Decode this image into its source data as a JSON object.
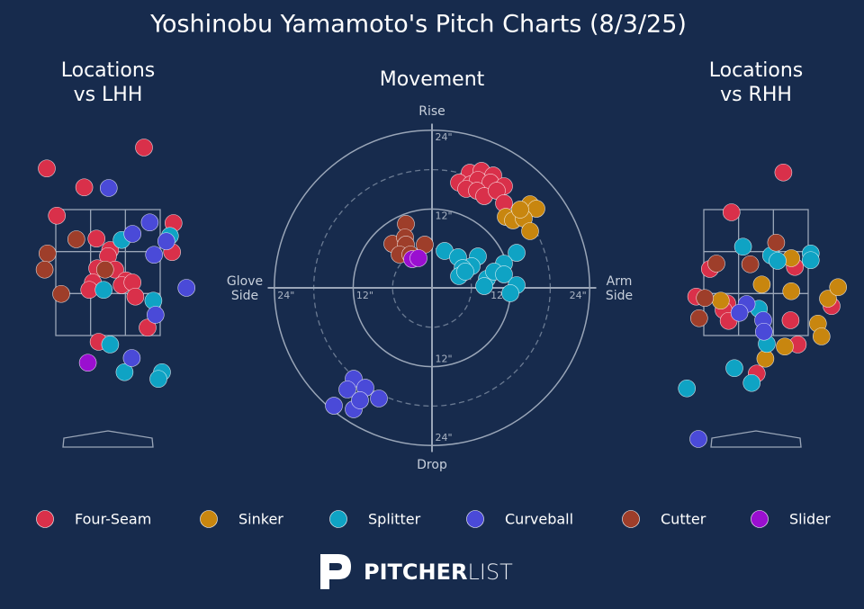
{
  "title": "Yoshinobu Yamamoto's Pitch Charts (8/3/25)",
  "brand_bold": "PITCHER",
  "brand_light": "LIST",
  "chart_data": [
    {
      "type": "scatter",
      "title": [
        "Locations",
        "vs LHH"
      ],
      "strike_zone": true,
      "xlim": [
        -1.25,
        1.25
      ],
      "ylim": [
        0,
        4.8
      ],
      "series": [
        {
          "name": "Four-Seam",
          "color": "#d9304a",
          "x": [
            -0.85,
            0.5,
            -0.33,
            -0.71,
            -0.16,
            0.91,
            0.89,
            0.03,
            0,
            -0.15,
            0.1,
            -0.21,
            -0.26,
            0.25,
            0.19,
            0.34,
            0.38,
            0.55,
            -0.13
          ],
          "y": [
            4.17,
            4.48,
            3.89,
            3.47,
            3.13,
            3.36,
            2.93,
            2.96,
            2.87,
            2.69,
            2.67,
            2.48,
            2.37,
            2.51,
            2.44,
            2.48,
            2.27,
            1.81,
            1.6
          ]
        },
        {
          "name": "Splitter",
          "color": "#0fa3c4",
          "x": [
            0.19,
            0.86,
            -0.06,
            0.63,
            0.03,
            0.23,
            0.75,
            0.7
          ],
          "y": [
            3.11,
            3.17,
            2.37,
            2.21,
            1.56,
            1.15,
            1.15,
            1.05
          ]
        },
        {
          "name": "Curveball",
          "color": "#4a4ad8",
          "x": [
            0.01,
            0.58,
            0.34,
            0.81,
            0.64,
            1.09,
            0.66,
            0.33
          ],
          "y": [
            3.88,
            3.37,
            3.2,
            3.09,
            2.89,
            2.4,
            2.0,
            1.36
          ]
        },
        {
          "name": "Cutter",
          "color": "#9e3e2a",
          "x": [
            -0.84,
            -0.44,
            -0.88,
            -0.65,
            -0.04
          ],
          "y": [
            2.91,
            3.12,
            2.67,
            2.31,
            2.67
          ]
        },
        {
          "name": "Slider",
          "color": "#9a0fd0",
          "x": [
            -0.28
          ],
          "y": [
            1.29
          ]
        }
      ]
    },
    {
      "type": "scatter",
      "title": [
        "Movement"
      ],
      "polar_grid": true,
      "xlim": [
        -25,
        25
      ],
      "ylim": [
        -25,
        25
      ],
      "rticks": [
        {
          "value": 12,
          "label": "12\""
        },
        {
          "value": 24,
          "label": "24\""
        }
      ],
      "minor_rticks": [
        6,
        18
      ],
      "axis_labels": {
        "top": "Rise",
        "bottom": "Drop",
        "left": [
          "Glove",
          "Side"
        ],
        "right": [
          "Arm",
          "Side"
        ]
      },
      "series": [
        {
          "name": "Four-Seam",
          "color": "#d9304a",
          "x": [
            5.75,
            7.53,
            9.32,
            4.11,
            5.89,
            6.99,
            8.9,
            10.96,
            5.21,
            6.85,
            7.95,
            9.86,
            10.96
          ],
          "y": [
            17.53,
            17.81,
            17.12,
            16.03,
            15.75,
            16.44,
            16.03,
            15.48,
            15.07,
            14.79,
            13.97,
            14.79,
            12.88
          ]
        },
        {
          "name": "Sinker",
          "color": "#c8860f",
          "x": [
            14.93,
            15.89,
            11.23,
            12.33,
            13.97,
            13.42,
            14.93
          ],
          "y": [
            12.74,
            12.05,
            10.82,
            10.27,
            10.55,
            11.92,
            8.63
          ]
        },
        {
          "name": "Splitter",
          "color": "#0fa3c4",
          "x": [
            1.92,
            3.97,
            6.99,
            12.88,
            6.03,
            4.66,
            10.96,
            4.11,
            5.07,
            8.36,
            9.45,
            10.96,
            7.95,
            12.88,
            11.92
          ],
          "y": [
            5.62,
            4.66,
            4.79,
            5.34,
            3.29,
            3.01,
            3.7,
            1.78,
            2.47,
            1.37,
            2.47,
            2.05,
            0.27,
            0.41,
            -0.82
          ]
        },
        {
          "name": "Curveball",
          "color": "#4a4ad8",
          "x": [
            -11.92,
            -12.88,
            -10.14,
            -8.08,
            -14.93,
            -11.92,
            -10.96
          ],
          "y": [
            -13.84,
            -15.48,
            -15.21,
            -16.85,
            -17.95,
            -18.49,
            -17.12
          ]
        },
        {
          "name": "Cutter",
          "color": "#9e3e2a",
          "x": [
            -3.97,
            -6.03,
            -4.11,
            -3.97,
            -1.1,
            -4.93,
            -3.29
          ],
          "y": [
            9.73,
            6.71,
            7.67,
            6.58,
            6.58,
            5.07,
            5.07
          ]
        },
        {
          "name": "Slider",
          "color": "#9a0fd0",
          "x": [
            -3.01,
            -2.05
          ],
          "y": [
            4.38,
            4.52
          ]
        }
      ]
    },
    {
      "type": "scatter",
      "title": [
        "Locations",
        "vs RHH"
      ],
      "strike_zone": true,
      "xlim": [
        -1.25,
        1.25
      ],
      "ylim": [
        0,
        4.8
      ],
      "series": [
        {
          "name": "Four-Seam",
          "color": "#d9304a",
          "x": [
            0.38,
            -0.34,
            0.54,
            -0.64,
            -0.83,
            -0.4,
            -0.45,
            -0.38,
            0.48,
            0.58,
            1.05,
            0.01
          ],
          "y": [
            4.11,
            3.52,
            2.71,
            2.68,
            2.27,
            2.17,
            2.07,
            1.91,
            1.92,
            1.56,
            2.13,
            1.13
          ]
        },
        {
          "name": "Sinker",
          "color": "#c8860f",
          "x": [
            0.49,
            0.08,
            0.49,
            -0.49,
            1.0,
            1.14,
            0.86,
            0.91,
            0.4,
            0.13
          ],
          "y": [
            2.84,
            2.45,
            2.35,
            2.21,
            2.24,
            2.41,
            1.87,
            1.68,
            1.53,
            1.35
          ]
        },
        {
          "name": "Splitter",
          "color": "#0fa3c4",
          "x": [
            -0.18,
            0.21,
            0.3,
            0.76,
            0.76,
            0.04,
            0.15,
            -0.3,
            -0.06,
            -0.96
          ],
          "y": [
            3.01,
            2.88,
            2.8,
            2.91,
            2.81,
            2.09,
            1.57,
            1.21,
            0.99,
            0.91
          ]
        },
        {
          "name": "Curveball",
          "color": "#4a4ad8",
          "x": [
            -0.13,
            -0.23,
            0.1,
            0.11,
            -0.8
          ],
          "y": [
            2.16,
            2.03,
            1.92,
            1.75,
            0.16
          ]
        },
        {
          "name": "Cutter",
          "color": "#9e3e2a",
          "x": [
            0.28,
            -0.55,
            -0.08,
            -0.71,
            -0.79
          ],
          "y": [
            3.07,
            2.76,
            2.75,
            2.25,
            1.95
          ]
        }
      ]
    }
  ]
}
